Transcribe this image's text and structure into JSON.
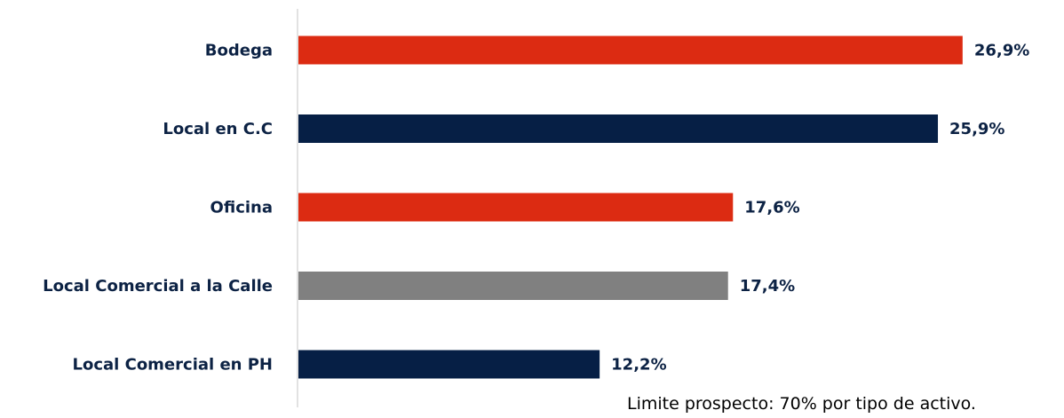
{
  "chart_data": {
    "type": "bar",
    "orientation": "horizontal",
    "categories": [
      "Bodega",
      "Local en C.C",
      "Oficina",
      "Local Comercial a la Calle",
      "Local Comercial en PH"
    ],
    "values": [
      26.9,
      25.9,
      17.6,
      17.4,
      12.2
    ],
    "value_labels": [
      "26,9%",
      "25,9%",
      "17,6%",
      "17,4%",
      "12,2%"
    ],
    "bar_colors": [
      "#dc2b12",
      "#061f45",
      "#dc2b12",
      "#808080",
      "#061f45"
    ],
    "xlim": [
      0,
      30
    ],
    "grid": false,
    "legend": "none",
    "title": "",
    "xlabel": "",
    "ylabel": ""
  },
  "footnote": "Limite prospecto: 70% por tipo de activo."
}
